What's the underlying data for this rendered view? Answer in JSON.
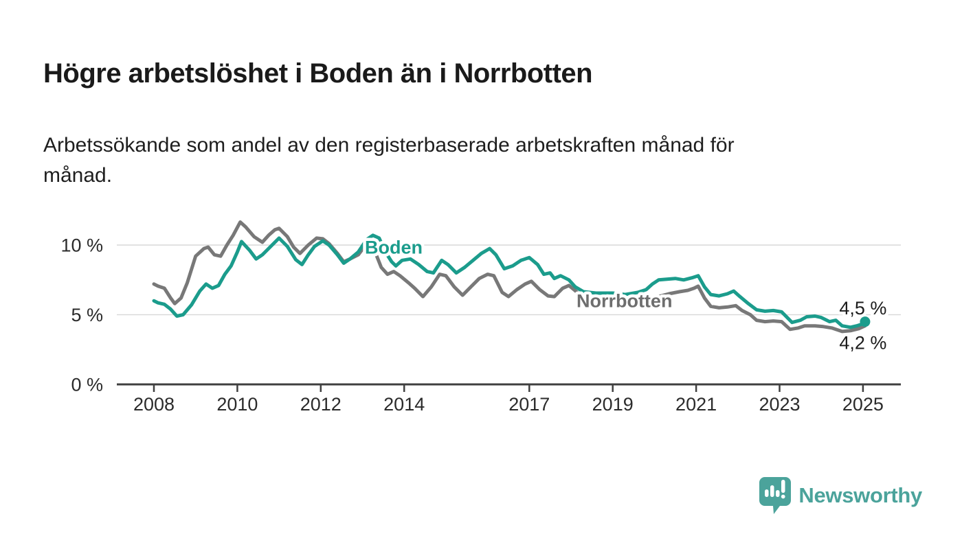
{
  "header": {
    "title": "Högre arbetslöshet i Boden än i Norrbotten",
    "subtitle": "Arbetssökande som andel av den registerbaserade arbetskraften månad för\nmånad."
  },
  "chart_data": {
    "type": "line",
    "title": "Högre arbetslöshet i Boden än i Norrbotten",
    "subtitle": "Arbetssökande som andel av den registerbaserade arbetskraften månad för månad.",
    "unit": "%",
    "grid": {
      "show_horizontal": true,
      "color": "#d9d9d9"
    },
    "x_axis": {
      "ticks": [
        2008,
        2010,
        2012,
        2014,
        2017,
        2019,
        2021,
        2023,
        2025
      ],
      "range": [
        2007.1,
        2025.9
      ]
    },
    "y_axis": {
      "ticks": [
        {
          "value": 0,
          "label": "0 %"
        },
        {
          "value": 5,
          "label": "5 %"
        },
        {
          "value": 10,
          "label": "10 %"
        }
      ],
      "range": [
        0,
        12.3
      ]
    },
    "series": [
      {
        "name": "Boden",
        "color": "#1b9c8c",
        "line_width": 5,
        "end_dot": true,
        "last_value_label": "4,5 %",
        "points": [
          [
            2008.0,
            6.0
          ],
          [
            2008.1,
            5.85
          ],
          [
            2008.25,
            5.75
          ],
          [
            2008.4,
            5.4
          ],
          [
            2008.55,
            4.9
          ],
          [
            2008.7,
            5.0
          ],
          [
            2008.9,
            5.7
          ],
          [
            2009.1,
            6.7
          ],
          [
            2009.25,
            7.2
          ],
          [
            2009.4,
            6.9
          ],
          [
            2009.55,
            7.1
          ],
          [
            2009.7,
            7.9
          ],
          [
            2009.85,
            8.5
          ],
          [
            2010.0,
            9.5
          ],
          [
            2010.1,
            10.25
          ],
          [
            2010.3,
            9.6
          ],
          [
            2010.45,
            9.0
          ],
          [
            2010.6,
            9.3
          ],
          [
            2010.8,
            9.9
          ],
          [
            2011.0,
            10.5
          ],
          [
            2011.2,
            9.9
          ],
          [
            2011.4,
            8.95
          ],
          [
            2011.55,
            8.6
          ],
          [
            2011.7,
            9.3
          ],
          [
            2011.85,
            9.9
          ],
          [
            2012.05,
            10.3
          ],
          [
            2012.2,
            10.0
          ],
          [
            2012.4,
            9.3
          ],
          [
            2012.55,
            8.7
          ],
          [
            2012.7,
            9.0
          ],
          [
            2012.9,
            9.5
          ],
          [
            2013.1,
            10.4
          ],
          [
            2013.25,
            10.7
          ],
          [
            2013.4,
            10.5
          ],
          [
            2013.55,
            9.5
          ],
          [
            2013.7,
            8.8
          ],
          [
            2013.8,
            8.5
          ],
          [
            2013.95,
            8.9
          ],
          [
            2014.15,
            9.0
          ],
          [
            2014.35,
            8.6
          ],
          [
            2014.55,
            8.1
          ],
          [
            2014.7,
            8.0
          ],
          [
            2014.9,
            8.9
          ],
          [
            2015.05,
            8.6
          ],
          [
            2015.25,
            8.0
          ],
          [
            2015.45,
            8.4
          ],
          [
            2015.65,
            8.9
          ],
          [
            2015.85,
            9.4
          ],
          [
            2016.05,
            9.75
          ],
          [
            2016.2,
            9.3
          ],
          [
            2016.4,
            8.3
          ],
          [
            2016.6,
            8.5
          ],
          [
            2016.8,
            8.9
          ],
          [
            2017.0,
            9.1
          ],
          [
            2017.2,
            8.6
          ],
          [
            2017.35,
            7.9
          ],
          [
            2017.5,
            8.0
          ],
          [
            2017.6,
            7.6
          ],
          [
            2017.75,
            7.8
          ],
          [
            2017.95,
            7.5
          ],
          [
            2018.1,
            7.0
          ],
          [
            2018.3,
            6.65
          ],
          [
            2018.6,
            6.55
          ],
          [
            2019.0,
            6.55
          ],
          [
            2019.3,
            6.45
          ],
          [
            2019.6,
            6.6
          ],
          [
            2019.8,
            6.8
          ],
          [
            2019.95,
            7.2
          ],
          [
            2020.1,
            7.5
          ],
          [
            2020.3,
            7.55
          ],
          [
            2020.5,
            7.6
          ],
          [
            2020.7,
            7.5
          ],
          [
            2020.9,
            7.65
          ],
          [
            2021.05,
            7.8
          ],
          [
            2021.2,
            7.0
          ],
          [
            2021.35,
            6.45
          ],
          [
            2021.55,
            6.35
          ],
          [
            2021.75,
            6.5
          ],
          [
            2021.9,
            6.7
          ],
          [
            2022.05,
            6.3
          ],
          [
            2022.25,
            5.8
          ],
          [
            2022.45,
            5.35
          ],
          [
            2022.65,
            5.25
          ],
          [
            2022.85,
            5.3
          ],
          [
            2023.05,
            5.2
          ],
          [
            2023.3,
            4.45
          ],
          [
            2023.5,
            4.6
          ],
          [
            2023.65,
            4.85
          ],
          [
            2023.85,
            4.9
          ],
          [
            2024.0,
            4.8
          ],
          [
            2024.2,
            4.5
          ],
          [
            2024.35,
            4.6
          ],
          [
            2024.5,
            4.2
          ],
          [
            2024.7,
            4.1
          ],
          [
            2024.85,
            4.2
          ],
          [
            2025.0,
            4.35
          ],
          [
            2025.05,
            4.5
          ]
        ]
      },
      {
        "name": "Norrbotten",
        "color": "#787878",
        "line_width": 5,
        "end_dot": false,
        "last_value_label": "4,2 %",
        "points": [
          [
            2008.0,
            7.2
          ],
          [
            2008.1,
            7.05
          ],
          [
            2008.25,
            6.9
          ],
          [
            2008.4,
            6.2
          ],
          [
            2008.5,
            5.8
          ],
          [
            2008.65,
            6.2
          ],
          [
            2008.8,
            7.3
          ],
          [
            2009.0,
            9.2
          ],
          [
            2009.2,
            9.75
          ],
          [
            2009.3,
            9.85
          ],
          [
            2009.45,
            9.3
          ],
          [
            2009.6,
            9.2
          ],
          [
            2009.75,
            10.0
          ],
          [
            2009.9,
            10.7
          ],
          [
            2010.07,
            11.65
          ],
          [
            2010.2,
            11.3
          ],
          [
            2010.4,
            10.6
          ],
          [
            2010.6,
            10.2
          ],
          [
            2010.75,
            10.7
          ],
          [
            2010.9,
            11.1
          ],
          [
            2011.0,
            11.2
          ],
          [
            2011.2,
            10.6
          ],
          [
            2011.35,
            9.85
          ],
          [
            2011.5,
            9.4
          ],
          [
            2011.7,
            10.0
          ],
          [
            2011.9,
            10.5
          ],
          [
            2012.05,
            10.45
          ],
          [
            2012.2,
            10.1
          ],
          [
            2012.4,
            9.4
          ],
          [
            2012.55,
            8.8
          ],
          [
            2012.7,
            9.0
          ],
          [
            2012.9,
            9.3
          ],
          [
            2013.1,
            10.1
          ],
          [
            2013.25,
            9.9
          ],
          [
            2013.45,
            8.4
          ],
          [
            2013.6,
            7.9
          ],
          [
            2013.75,
            8.1
          ],
          [
            2013.9,
            7.8
          ],
          [
            2014.1,
            7.3
          ],
          [
            2014.25,
            6.9
          ],
          [
            2014.45,
            6.3
          ],
          [
            2014.65,
            7.0
          ],
          [
            2014.85,
            7.9
          ],
          [
            2015.0,
            7.8
          ],
          [
            2015.2,
            7.0
          ],
          [
            2015.4,
            6.4
          ],
          [
            2015.6,
            7.0
          ],
          [
            2015.8,
            7.6
          ],
          [
            2016.0,
            7.9
          ],
          [
            2016.15,
            7.8
          ],
          [
            2016.35,
            6.6
          ],
          [
            2016.5,
            6.3
          ],
          [
            2016.7,
            6.8
          ],
          [
            2016.9,
            7.2
          ],
          [
            2017.05,
            7.4
          ],
          [
            2017.25,
            6.8
          ],
          [
            2017.45,
            6.35
          ],
          [
            2017.6,
            6.3
          ],
          [
            2017.8,
            6.9
          ],
          [
            2017.95,
            7.1
          ],
          [
            2018.15,
            6.6
          ],
          [
            2018.4,
            6.1
          ],
          [
            2018.7,
            5.9
          ],
          [
            2019.0,
            5.85
          ],
          [
            2019.3,
            5.75
          ],
          [
            2019.6,
            5.85
          ],
          [
            2019.85,
            6.0
          ],
          [
            2020.1,
            6.3
          ],
          [
            2020.35,
            6.5
          ],
          [
            2020.6,
            6.65
          ],
          [
            2020.8,
            6.75
          ],
          [
            2020.95,
            6.9
          ],
          [
            2021.05,
            7.05
          ],
          [
            2021.2,
            6.2
          ],
          [
            2021.35,
            5.6
          ],
          [
            2021.55,
            5.5
          ],
          [
            2021.75,
            5.55
          ],
          [
            2021.95,
            5.65
          ],
          [
            2022.1,
            5.3
          ],
          [
            2022.3,
            5.0
          ],
          [
            2022.45,
            4.6
          ],
          [
            2022.65,
            4.5
          ],
          [
            2022.85,
            4.55
          ],
          [
            2023.05,
            4.5
          ],
          [
            2023.25,
            3.95
          ],
          [
            2023.45,
            4.05
          ],
          [
            2023.6,
            4.2
          ],
          [
            2023.85,
            4.2
          ],
          [
            2024.05,
            4.15
          ],
          [
            2024.25,
            4.05
          ],
          [
            2024.5,
            3.8
          ],
          [
            2024.7,
            3.85
          ],
          [
            2024.9,
            4.0
          ],
          [
            2025.05,
            4.2
          ]
        ]
      }
    ],
    "annotations": [
      {
        "text": "Boden",
        "x": 2013.75,
        "y": 9.85,
        "color": "#1b9c8c",
        "weight": "bold"
      },
      {
        "text": "Norrbotten",
        "x": 2019.28,
        "y": 6.0,
        "color": "#6e6e6e",
        "weight": "bold"
      },
      {
        "text": "4,5 %",
        "x": 2025.0,
        "y": 5.5,
        "color": "#1c1c1c",
        "weight": "normal"
      },
      {
        "text": "4,2 %",
        "x": 2025.0,
        "y": 3.0,
        "color": "#1c1c1c",
        "weight": "normal"
      }
    ],
    "axis_color": "#3f3f3f",
    "tick_label_color": "#2b2b2b"
  },
  "footer": {
    "brand": "Newsworthy",
    "brand_color": "#4ba39b"
  }
}
